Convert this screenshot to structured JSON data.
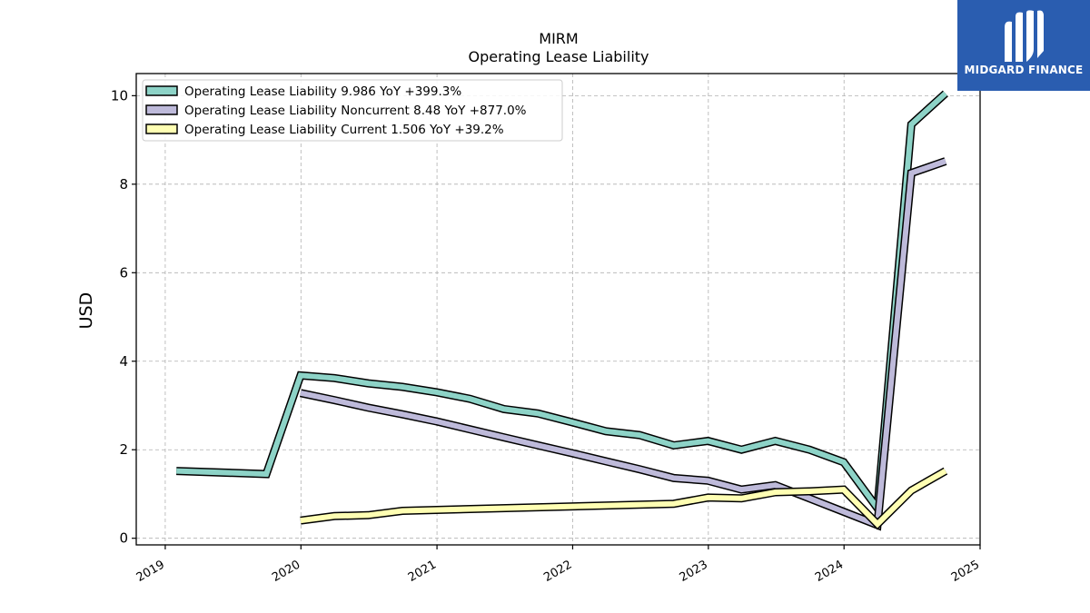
{
  "brand": {
    "name": "MIDGARD FINANCE",
    "logo_icon": "midgard-m-logo-icon",
    "background_color": "#2a5db0"
  },
  "chart_data": {
    "type": "line",
    "title": "MIRM",
    "subtitle": "Operating Lease Liability",
    "xlabel": "",
    "ylabel": "USD",
    "xlim": [
      "2018-10-15",
      "2025-01-01"
    ],
    "ylim": [
      -0.15,
      10.5
    ],
    "x_ticks": [
      "2019",
      "2020",
      "2021",
      "2022",
      "2023",
      "2024",
      "2025"
    ],
    "y_ticks": [
      0,
      2,
      4,
      6,
      8,
      10
    ],
    "grid": true,
    "legend_position": "top-left",
    "series": [
      {
        "name": "Operating Lease Liability",
        "legend_label": "Operating Lease Liability  9.986 YoY +399.3%",
        "color": "#8dd3c7",
        "points": [
          [
            "2019-01-31",
            1.52
          ],
          [
            "2019-09-30",
            1.45
          ],
          [
            "2019-12-31",
            3.68
          ],
          [
            "2020-03-31",
            3.62
          ],
          [
            "2020-06-30",
            3.5
          ],
          [
            "2020-09-30",
            3.42
          ],
          [
            "2020-12-31",
            3.3
          ],
          [
            "2021-03-31",
            3.15
          ],
          [
            "2021-06-30",
            2.92
          ],
          [
            "2021-09-30",
            2.82
          ],
          [
            "2021-12-31",
            2.62
          ],
          [
            "2022-03-31",
            2.42
          ],
          [
            "2022-06-30",
            2.33
          ],
          [
            "2022-09-30",
            2.1
          ],
          [
            "2022-12-31",
            2.2
          ],
          [
            "2023-03-31",
            2.0
          ],
          [
            "2023-06-30",
            2.2
          ],
          [
            "2023-09-30",
            2.0
          ],
          [
            "2023-12-31",
            1.72
          ],
          [
            "2024-03-31",
            0.68
          ],
          [
            "2024-06-30",
            9.35
          ],
          [
            "2024-09-30",
            10.05
          ]
        ]
      },
      {
        "name": "Operating Lease Liability Noncurrent",
        "legend_label": "Operating Lease Liability Noncurrent  8.48 YoY +877.0%",
        "color": "#bebada",
        "points": [
          [
            "2019-12-31",
            3.28
          ],
          [
            "2020-03-31",
            3.12
          ],
          [
            "2020-06-30",
            2.95
          ],
          [
            "2020-09-30",
            2.8
          ],
          [
            "2020-12-31",
            2.64
          ],
          [
            "2021-03-31",
            2.46
          ],
          [
            "2021-06-30",
            2.28
          ],
          [
            "2021-09-30",
            2.1
          ],
          [
            "2021-12-31",
            1.92
          ],
          [
            "2022-03-31",
            1.74
          ],
          [
            "2022-06-30",
            1.56
          ],
          [
            "2022-09-30",
            1.36
          ],
          [
            "2022-12-31",
            1.3
          ],
          [
            "2023-03-31",
            1.1
          ],
          [
            "2023-06-30",
            1.2
          ],
          [
            "2023-09-30",
            0.9
          ],
          [
            "2023-12-31",
            0.6
          ],
          [
            "2024-03-31",
            0.3
          ],
          [
            "2024-06-30",
            8.25
          ],
          [
            "2024-09-30",
            8.52
          ]
        ]
      },
      {
        "name": "Operating Lease Liability Current",
        "legend_label": "Operating Lease Liability Current  1.506 YoY +39.2%",
        "color": "#ffffb3",
        "points": [
          [
            "2019-12-31",
            0.4
          ],
          [
            "2020-03-31",
            0.5
          ],
          [
            "2020-06-30",
            0.52
          ],
          [
            "2020-09-30",
            0.62
          ],
          [
            "2020-12-31",
            0.64
          ],
          [
            "2022-09-30",
            0.78
          ],
          [
            "2022-12-31",
            0.92
          ],
          [
            "2023-03-31",
            0.9
          ],
          [
            "2023-06-30",
            1.04
          ],
          [
            "2023-09-30",
            1.06
          ],
          [
            "2023-12-31",
            1.1
          ],
          [
            "2024-03-31",
            0.32
          ],
          [
            "2024-06-30",
            1.08
          ],
          [
            "2024-09-30",
            1.52
          ]
        ]
      }
    ]
  }
}
